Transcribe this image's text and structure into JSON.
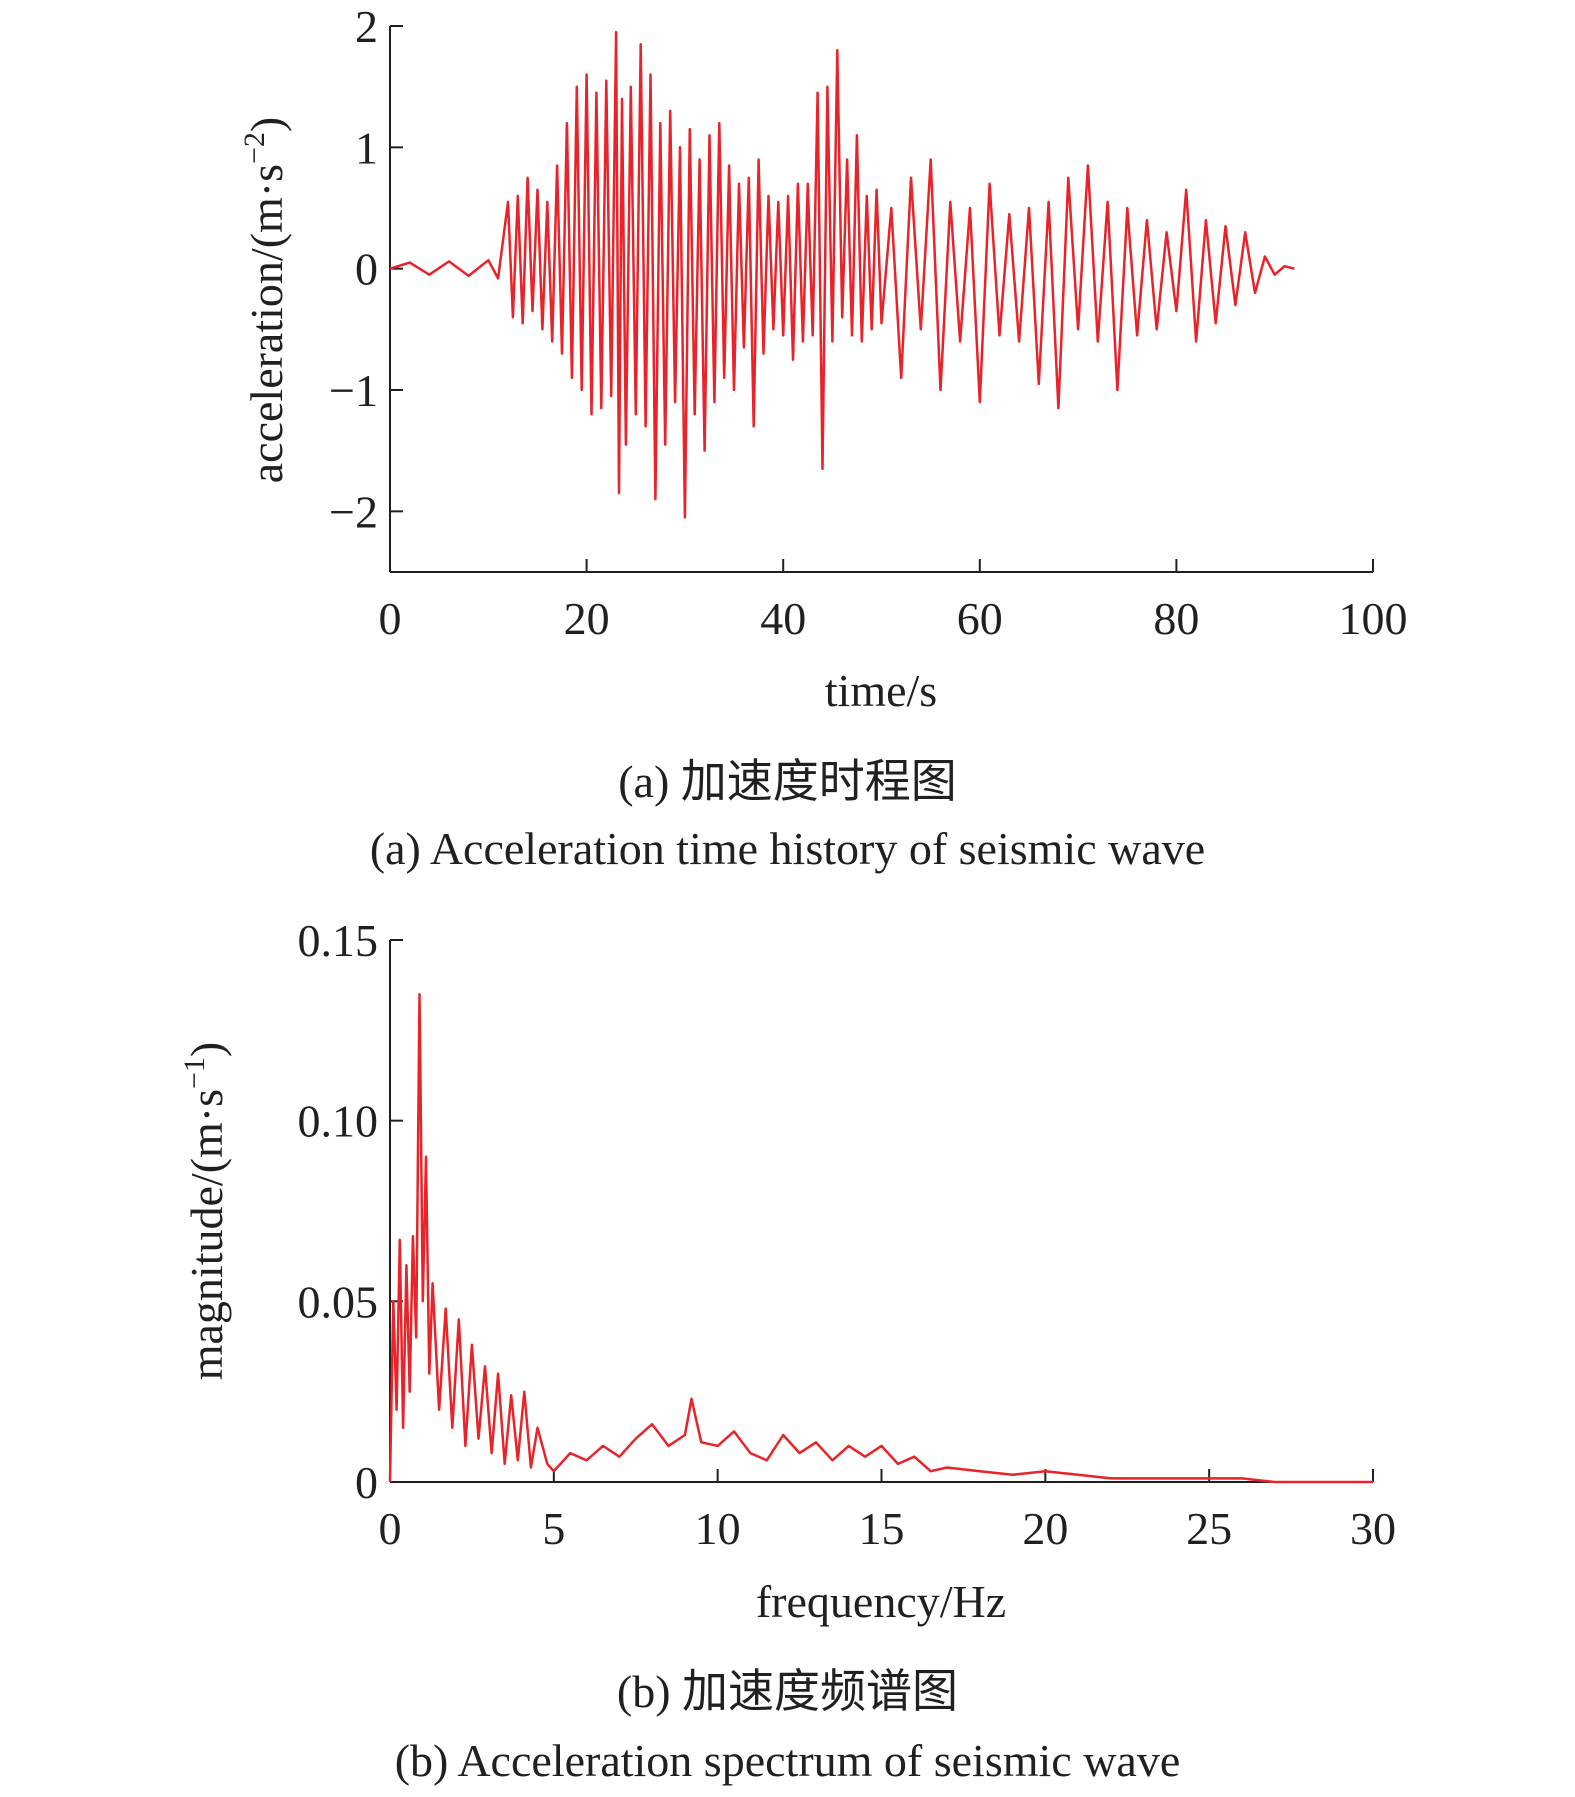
{
  "colors": {
    "series": "#e8232a",
    "axis": "#231f20"
  },
  "charts": [
    {
      "caption_cn": "(a) 加速度时程图",
      "caption_en": "(a) Acceleration time history of seismic wave"
    },
    {
      "caption_cn": "(b) 加速度频谱图",
      "caption_en": "(b) Acceleration spectrum of seismic wave"
    }
  ],
  "chart_data": [
    {
      "type": "line",
      "title": "",
      "xlabel": "time/s",
      "ylabel_main": "acceleration/(m·s",
      "ylabel_sup": "−2",
      "ylabel_end": ")",
      "xlim": [
        0,
        100
      ],
      "ylim": [
        -2.5,
        2
      ],
      "xticks": [
        0,
        20,
        40,
        60,
        80,
        100
      ],
      "xtick_labels": [
        "0",
        "20",
        "40",
        "60",
        "80",
        "100"
      ],
      "yticks": [
        -2,
        -1,
        0,
        1,
        2
      ],
      "ytick_labels": [
        "−2",
        "−1",
        "0",
        "1",
        "2"
      ],
      "grid": false,
      "series": [
        {
          "x": [
            0,
            2,
            4,
            6,
            8,
            10,
            11,
            12,
            12.5,
            13,
            13.5,
            14,
            14.5,
            15,
            15.5,
            16,
            16.5,
            17,
            17.5,
            18,
            18.5,
            19,
            19.5,
            20,
            20.5,
            21,
            21.5,
            22,
            22.5,
            23,
            23.3,
            23.6,
            24,
            24.5,
            25,
            25.5,
            26,
            26.5,
            27,
            27.5,
            28,
            28.5,
            29,
            29.5,
            30,
            30.5,
            31,
            31.5,
            32,
            32.5,
            33,
            33.5,
            34,
            34.5,
            35,
            35.5,
            36,
            36.5,
            37,
            37.5,
            38,
            38.5,
            39,
            39.5,
            40,
            40.5,
            41,
            41.5,
            42,
            42.5,
            43,
            43.5,
            44,
            44.5,
            45,
            45.5,
            46,
            46.5,
            47,
            47.5,
            48,
            48.5,
            49,
            49.5,
            50,
            51,
            52,
            53,
            54,
            55,
            56,
            57,
            58,
            59,
            60,
            61,
            62,
            63,
            64,
            65,
            66,
            67,
            68,
            69,
            70,
            71,
            72,
            73,
            74,
            75,
            76,
            77,
            78,
            79,
            80,
            81,
            82,
            83,
            84,
            85,
            86,
            87,
            88,
            89,
            90,
            91,
            92
          ],
          "y": [
            0,
            0.05,
            -0.05,
            0.06,
            -0.06,
            0.07,
            -0.08,
            0.55,
            -0.4,
            0.6,
            -0.45,
            0.75,
            -0.35,
            0.65,
            -0.5,
            0.55,
            -0.6,
            0.85,
            -0.7,
            1.2,
            -0.9,
            1.5,
            -1.0,
            1.6,
            -1.2,
            1.45,
            -1.15,
            1.55,
            -1.05,
            1.95,
            -1.85,
            1.4,
            -1.45,
            1.5,
            -1.2,
            1.85,
            -1.3,
            1.6,
            -1.9,
            1.2,
            -1.45,
            1.3,
            -1.1,
            1.0,
            -2.05,
            1.15,
            -1.2,
            0.9,
            -1.5,
            1.1,
            -1.1,
            1.2,
            -0.9,
            0.85,
            -1.0,
            0.7,
            -0.65,
            0.75,
            -1.3,
            0.9,
            -0.7,
            0.6,
            -0.5,
            0.55,
            -0.55,
            0.6,
            -0.75,
            0.7,
            -0.6,
            0.7,
            -0.55,
            1.45,
            -1.65,
            1.5,
            -0.6,
            1.8,
            -0.4,
            0.9,
            -0.55,
            1.1,
            -0.6,
            0.6,
            -0.5,
            0.65,
            -0.45,
            0.5,
            -0.9,
            0.75,
            -0.5,
            0.9,
            -1.0,
            0.55,
            -0.6,
            0.5,
            -1.1,
            0.7,
            -0.55,
            0.45,
            -0.6,
            0.5,
            -0.95,
            0.55,
            -1.15,
            0.75,
            -0.5,
            0.85,
            -0.6,
            0.55,
            -1.0,
            0.5,
            -0.55,
            0.4,
            -0.5,
            0.3,
            -0.35,
            0.65,
            -0.6,
            0.4,
            -0.45,
            0.35,
            -0.3,
            0.3,
            -0.2,
            0.1,
            -0.05,
            0.02,
            0
          ]
        }
      ]
    },
    {
      "type": "line",
      "title": "",
      "xlabel": "frequency/Hz",
      "ylabel_main": "magnitude/(m·s",
      "ylabel_sup": "−1",
      "ylabel_end": ")",
      "xlim": [
        0,
        30
      ],
      "ylim": [
        0,
        0.15
      ],
      "xticks": [
        0,
        5,
        10,
        15,
        20,
        25,
        30
      ],
      "xtick_labels": [
        "0",
        "5",
        "10",
        "15",
        "20",
        "25",
        "30"
      ],
      "yticks": [
        0,
        0.05,
        0.1,
        0.15
      ],
      "ytick_labels": [
        "0",
        "0.05",
        "0.10",
        "0.15"
      ],
      "grid": false,
      "series": [
        {
          "x": [
            0,
            0.1,
            0.2,
            0.3,
            0.4,
            0.5,
            0.6,
            0.7,
            0.8,
            0.9,
            1.0,
            1.1,
            1.2,
            1.3,
            1.5,
            1.7,
            1.9,
            2.1,
            2.3,
            2.5,
            2.7,
            2.9,
            3.1,
            3.3,
            3.5,
            3.7,
            3.9,
            4.1,
            4.3,
            4.5,
            4.8,
            5.0,
            5.5,
            6.0,
            6.5,
            7.0,
            7.5,
            8.0,
            8.5,
            9.0,
            9.2,
            9.5,
            10.0,
            10.5,
            11.0,
            11.5,
            12.0,
            12.5,
            13.0,
            13.5,
            14.0,
            14.5,
            15.0,
            15.5,
            16.0,
            16.5,
            17.0,
            18.0,
            19.0,
            20.0,
            21.0,
            22.0,
            23.0,
            24.0,
            25.0,
            26.0,
            27.0,
            28.0,
            29.0,
            30.0
          ],
          "y": [
            0.0,
            0.05,
            0.02,
            0.067,
            0.015,
            0.06,
            0.025,
            0.068,
            0.04,
            0.135,
            0.05,
            0.09,
            0.03,
            0.055,
            0.02,
            0.048,
            0.015,
            0.045,
            0.01,
            0.038,
            0.012,
            0.032,
            0.008,
            0.03,
            0.005,
            0.024,
            0.006,
            0.025,
            0.004,
            0.015,
            0.005,
            0.003,
            0.008,
            0.006,
            0.01,
            0.007,
            0.012,
            0.016,
            0.01,
            0.013,
            0.023,
            0.011,
            0.01,
            0.014,
            0.008,
            0.006,
            0.013,
            0.008,
            0.011,
            0.006,
            0.01,
            0.007,
            0.01,
            0.005,
            0.007,
            0.003,
            0.004,
            0.003,
            0.002,
            0.003,
            0.002,
            0.001,
            0.001,
            0.001,
            0.001,
            0.001,
            0.0,
            0.0,
            0.0,
            0.0
          ]
        }
      ]
    }
  ]
}
